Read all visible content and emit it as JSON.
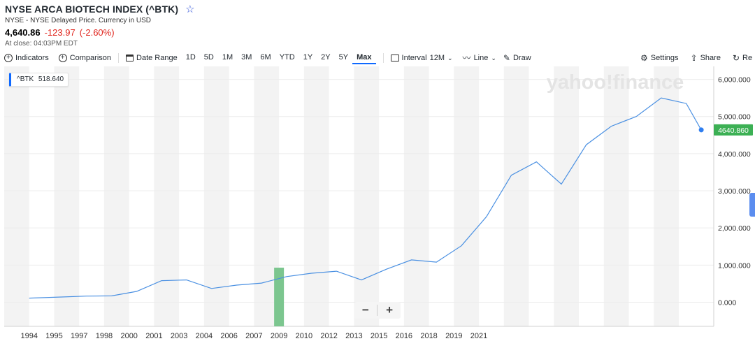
{
  "header": {
    "title": "NYSE ARCA BIOTECH INDEX (^BTK)",
    "subtitle": "NYSE - NYSE Delayed Price. Currency in USD",
    "price": "4,640.86",
    "change": "-123.97",
    "change_pct": "(-2.60%)",
    "close_time": "At close: 04:03PM EDT",
    "star_icon": "star-icon"
  },
  "toolbar": {
    "indicators": "Indicators",
    "comparison": "Comparison",
    "date_range": "Date Range",
    "ranges": [
      "1D",
      "5D",
      "1M",
      "3M",
      "6M",
      "YTD",
      "1Y",
      "2Y",
      "5Y",
      "Max"
    ],
    "active_range": "Max",
    "interval_label": "Interval",
    "interval_value": "12M",
    "chart_type": "Line",
    "draw": "Draw",
    "settings": "Settings",
    "share": "Share",
    "reset": "Re"
  },
  "legend": {
    "symbol": "^BTK",
    "value": "518.640"
  },
  "watermark": "yahoo!finance",
  "zoom": {
    "minus": "−",
    "plus": "+"
  },
  "colors": {
    "line": "#4a90e2",
    "last_badge": "#3cb054",
    "event_bar": "#7cc68f",
    "accent": "#0f69ff"
  },
  "chart_data": {
    "type": "line",
    "x_tick_labels": [
      "1994",
      "1995",
      "1997",
      "1998",
      "2000",
      "2001",
      "2003",
      "2004",
      "2006",
      "2007",
      "2009",
      "2010",
      "2012",
      "2013",
      "2015",
      "2016",
      "2018",
      "2019",
      "2021"
    ],
    "y_tick_labels": [
      "6,000.000",
      "5,000.000",
      "4,000.000",
      "3,000.000",
      "2,000.000",
      "1,000.000",
      "0.000"
    ],
    "ylim": [
      -650,
      6350
    ],
    "xlim": [
      1993.4,
      2021.8
    ],
    "grid": true,
    "last_value_label": "4640.860",
    "event_marker_x": 2004.4,
    "series": [
      {
        "x": [
          1994.4,
          1995.7,
          1996.7,
          1997.7,
          1998.7,
          1999.7,
          2000.7,
          2001.7,
          2002.7,
          2003.7,
          2004.7,
          2005.7,
          2006.7,
          2007.7,
          2008.7,
          2009.7,
          2010.7,
          2011.7,
          2012.7,
          2013.7,
          2014.7,
          2015.7,
          2016.7,
          2017.7,
          2018.7,
          2019.7,
          2020.7,
          2021.3
        ],
        "y": [
          110,
          140,
          165,
          170,
          290,
          580,
          600,
          370,
          460,
          515,
          690,
          780,
          835,
          600,
          890,
          1140,
          1080,
          1520,
          2300,
          3420,
          3780,
          3180,
          4240,
          4740,
          5000,
          5500,
          5350,
          4640
        ]
      }
    ]
  }
}
